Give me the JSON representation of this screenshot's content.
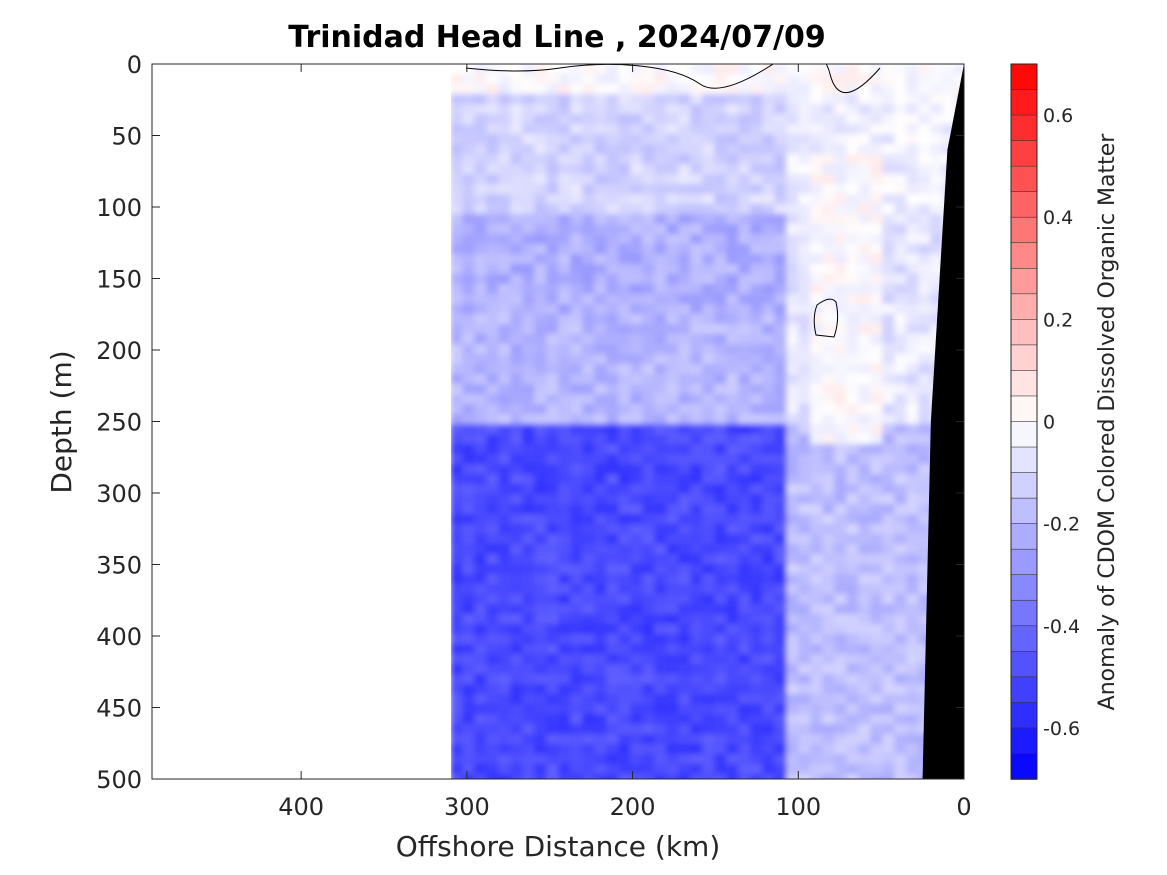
{
  "chart_data": {
    "type": "heatmap",
    "title": "Trinidad Head Line , 2024/07/09",
    "xlabel": "Offshore Distance (km)",
    "ylabel": "Depth (m)",
    "xlim": [
      490,
      0
    ],
    "ylim": [
      0,
      500
    ],
    "x_reversed": true,
    "y_reversed": true,
    "xticks": [
      "400",
      "300",
      "200",
      "100",
      "0"
    ],
    "xtick_values": [
      400,
      300,
      200,
      100,
      0
    ],
    "yticks": [
      "0",
      "50",
      "100",
      "150",
      "200",
      "250",
      "300",
      "350",
      "400",
      "450",
      "500"
    ],
    "ytick_values": [
      0,
      50,
      100,
      150,
      200,
      250,
      300,
      350,
      400,
      450,
      500
    ],
    "data_extent_km": [
      310,
      0
    ],
    "colorbar": {
      "label": "Anomaly of CDOM Colored Dissolved Organic Matter",
      "clim": [
        -0.7,
        0.7
      ],
      "levels_step": 0.05,
      "ticks": [
        "0.6",
        "0.4",
        "0.2",
        "0",
        "-0.2",
        "-0.4",
        "-0.6"
      ],
      "tick_values": [
        0.6,
        0.4,
        0.2,
        0,
        -0.2,
        -0.4,
        -0.6
      ],
      "colormap": "blue-white-red",
      "color_low": "#0000ff",
      "color_mid": "#ffffff",
      "color_high": "#ff0000"
    },
    "depth_bands": [
      {
        "depth": [
          0,
          20
        ],
        "anomaly": 0.0
      },
      {
        "depth": [
          20,
          100
        ],
        "anomaly": -0.12
      },
      {
        "depth": [
          100,
          170
        ],
        "anomaly": -0.22
      },
      {
        "depth": [
          170,
          250
        ],
        "anomaly": -0.2
      },
      {
        "depth": [
          250,
          500
        ],
        "anomaly": -0.5
      }
    ],
    "bottom_topography": [
      {
        "distance": 0,
        "depth": 0
      },
      {
        "distance": 10,
        "depth": 60
      },
      {
        "distance": 20,
        "depth": 250
      },
      {
        "distance": 25,
        "depth": 500
      }
    ],
    "bottom_color": "#000000"
  }
}
